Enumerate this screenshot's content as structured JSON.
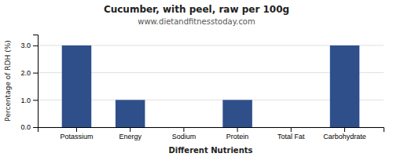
{
  "chart_data": {
    "type": "bar",
    "title": "Cucumber, with peel, raw per 100g",
    "subtitle": "www.dietandfitnesstoday.com",
    "xlabel": "Different Nutrients",
    "ylabel": "Percentage of RDH (%)",
    "categories": [
      "Potassium",
      "Energy",
      "Sodium",
      "Protein",
      "Total Fat",
      "Carbohydrate"
    ],
    "values": [
      3.0,
      1.0,
      0.0,
      1.0,
      0.0,
      3.0
    ],
    "color": "#2e4f8a",
    "ylim": [
      0,
      3.4
    ],
    "yticks": [
      {
        "value": 0.0,
        "label": "0.0"
      },
      {
        "value": 1.0,
        "label": "1.0"
      },
      {
        "value": 2.0,
        "label": "2.0"
      },
      {
        "value": 3.0,
        "label": "3.0"
      }
    ],
    "grid": true
  }
}
